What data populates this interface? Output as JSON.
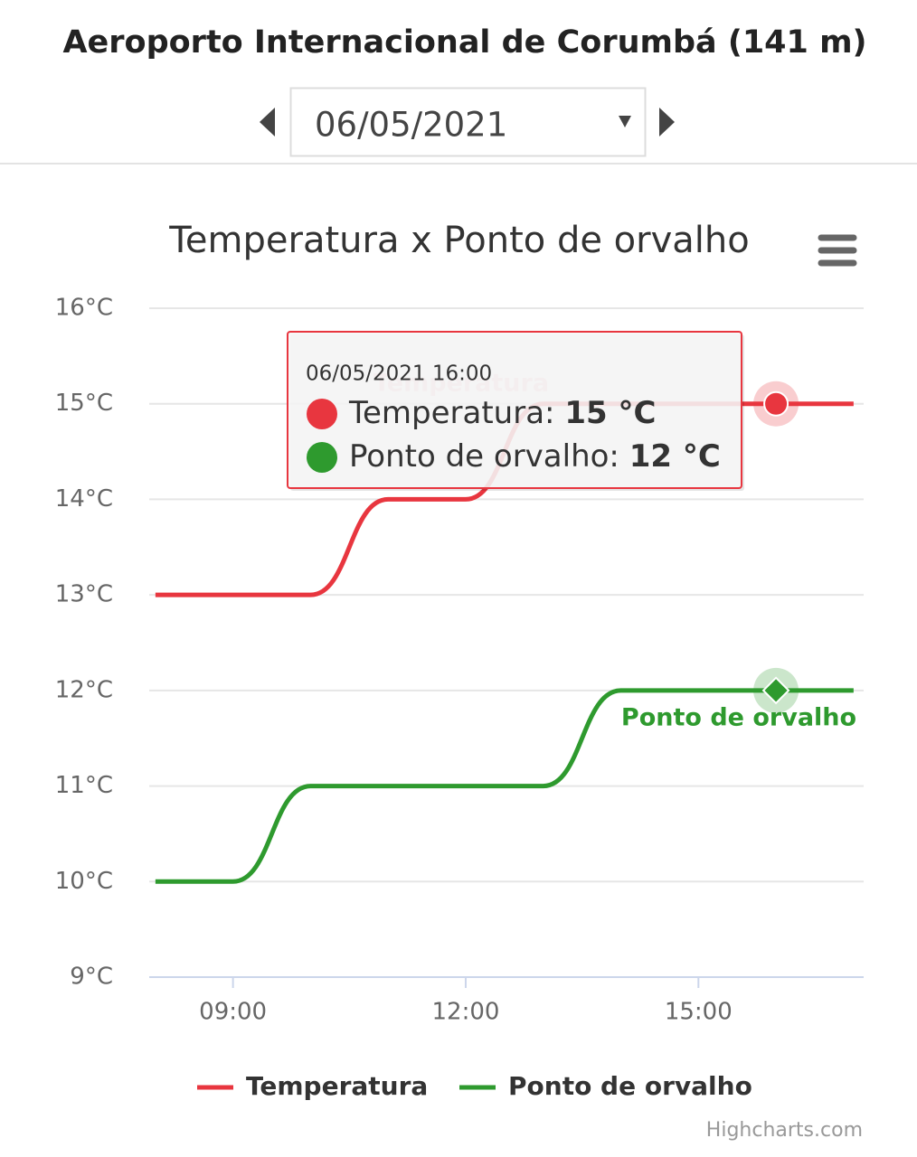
{
  "header": {
    "title": "Aeroporto Internacional de Corumbá (141 m)",
    "date": "06/05/2021"
  },
  "chart_data": {
    "type": "line",
    "title": "Temperatura x Ponto de orvalho",
    "x": [
      8,
      9,
      10,
      11,
      12,
      13,
      14,
      15,
      16,
      17
    ],
    "xlim": [
      7.92,
      17.13
    ],
    "xticks": [
      {
        "value": 9,
        "label": "09:00"
      },
      {
        "value": 12,
        "label": "12:00"
      },
      {
        "value": 15,
        "label": "15:00"
      }
    ],
    "ylim": [
      9,
      16
    ],
    "yticks": [
      {
        "value": 9,
        "label": "9°C"
      },
      {
        "value": 10,
        "label": "10°C"
      },
      {
        "value": 11,
        "label": "11°C"
      },
      {
        "value": 12,
        "label": "12°C"
      },
      {
        "value": 13,
        "label": "13°C"
      },
      {
        "value": 14,
        "label": "14°C"
      },
      {
        "value": 15,
        "label": "15°C"
      },
      {
        "value": 16,
        "label": "16°C"
      }
    ],
    "grid": true,
    "series": [
      {
        "name": "Temperatura",
        "color": "#e8363f",
        "values": [
          13,
          13,
          13,
          14,
          14,
          15,
          15,
          15,
          15,
          15
        ]
      },
      {
        "name": "Ponto de orvalho",
        "color": "#2e9a2e",
        "values": [
          10,
          10,
          11,
          11,
          11,
          11,
          12,
          12,
          12,
          12
        ]
      }
    ],
    "tooltip": {
      "header": "06/05/2021 16:00",
      "x": 16,
      "rows": [
        {
          "label": "Temperatura:",
          "value": "15 °C"
        },
        {
          "label": "Ponto de orvalho:",
          "value": "12 °C"
        }
      ]
    },
    "legend": "bottom",
    "credits": "Highcharts.com"
  }
}
